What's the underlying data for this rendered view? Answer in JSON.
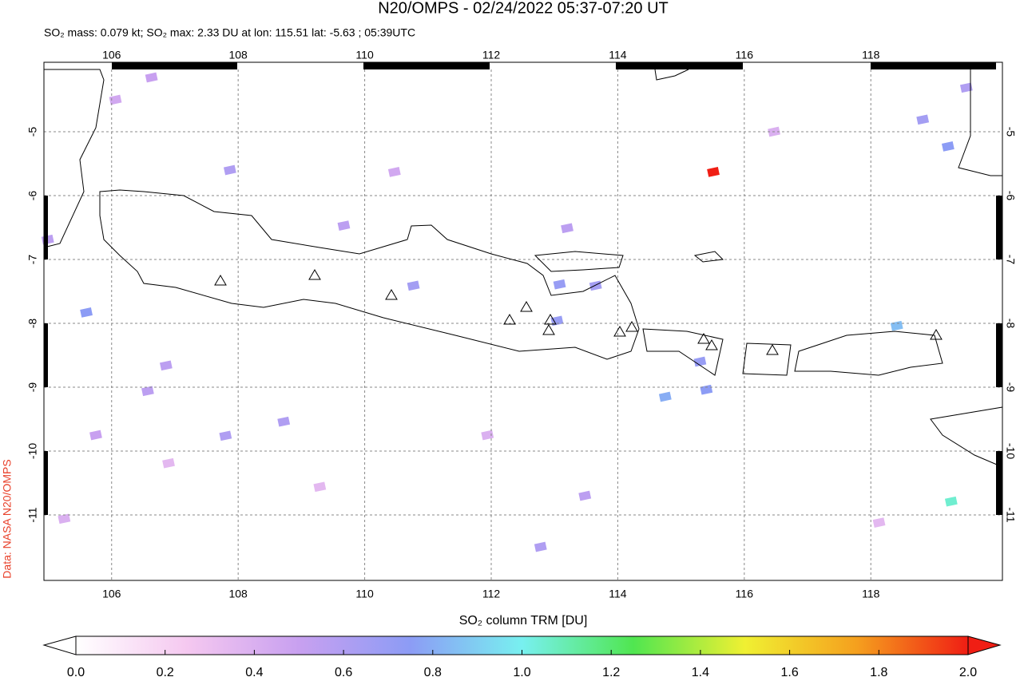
{
  "chart_data": {
    "type": "pixel-map",
    "title": "N20/OMPS - 02/24/2022 05:37-07:20 UT",
    "subtitle": "SO₂ mass: 0.079 kt; SO₂ max: 2.33 DU at lon: 115.51 lat: -5.63 ; 05:39UTC",
    "credit": "Data: NASA N20/OMPS",
    "xlim": [
      104.93,
      120.08
    ],
    "ylim": [
      -12.025,
      -4.025
    ],
    "xticks": [
      106,
      108,
      110,
      112,
      114,
      116,
      118
    ],
    "yticks": [
      -5,
      -6,
      -7,
      -8,
      -9,
      -10,
      -11
    ],
    "grid": true,
    "pixels": [
      {
        "lon": 115.51,
        "lat": -5.63,
        "value": 2.33
      },
      {
        "lon": 119.27,
        "lat": -10.79,
        "value": 1.05
      },
      {
        "lon": 114.75,
        "lat": -9.15,
        "value": 0.8
      },
      {
        "lon": 118.41,
        "lat": -8.04,
        "value": 0.85
      },
      {
        "lon": 107.87,
        "lat": -5.6,
        "value": 0.6
      },
      {
        "lon": 105.6,
        "lat": -7.83,
        "value": 0.75
      },
      {
        "lon": 113.04,
        "lat": -7.96,
        "value": 0.7
      },
      {
        "lon": 113.65,
        "lat": -7.41,
        "value": 0.65
      },
      {
        "lon": 110.77,
        "lat": -7.41,
        "value": 0.65
      },
      {
        "lon": 113.08,
        "lat": -7.39,
        "value": 0.7
      },
      {
        "lon": 108.72,
        "lat": -9.54,
        "value": 0.6
      },
      {
        "lon": 107.8,
        "lat": -9.76,
        "value": 0.6
      },
      {
        "lon": 106.86,
        "lat": -8.66,
        "value": 0.55
      },
      {
        "lon": 106.57,
        "lat": -9.06,
        "value": 0.55
      },
      {
        "lon": 105.75,
        "lat": -9.75,
        "value": 0.5
      },
      {
        "lon": 109.67,
        "lat": -6.47,
        "value": 0.55
      },
      {
        "lon": 118.82,
        "lat": -4.81,
        "value": 0.65
      },
      {
        "lon": 119.22,
        "lat": -5.23,
        "value": 0.75
      },
      {
        "lon": 119.51,
        "lat": -4.31,
        "value": 0.6
      },
      {
        "lon": 115.4,
        "lat": -9.04,
        "value": 0.75
      },
      {
        "lon": 112.78,
        "lat": -11.5,
        "value": 0.6
      },
      {
        "lon": 113.48,
        "lat": -10.7,
        "value": 0.55
      },
      {
        "lon": 106.06,
        "lat": -4.5,
        "value": 0.45
      },
      {
        "lon": 106.63,
        "lat": -4.15,
        "value": 0.5
      },
      {
        "lon": 105.25,
        "lat": -11.06,
        "value": 0.4
      },
      {
        "lon": 113.2,
        "lat": -6.51,
        "value": 0.55
      },
      {
        "lon": 104.99,
        "lat": -6.69,
        "value": 0.55
      },
      {
        "lon": 115.3,
        "lat": -8.6,
        "value": 0.7
      },
      {
        "lon": 116.47,
        "lat": -5.0,
        "value": 0.4
      },
      {
        "lon": 111.94,
        "lat": -9.75,
        "value": 0.4
      },
      {
        "lon": 109.29,
        "lat": -10.56,
        "value": 0.35
      },
      {
        "lon": 106.9,
        "lat": -10.19,
        "value": 0.35
      },
      {
        "lon": 118.13,
        "lat": -11.12,
        "value": 0.35
      },
      {
        "lon": 110.47,
        "lat": -5.63,
        "value": 0.45
      }
    ],
    "colorbar": {
      "label": "SO₂ column TRM [DU]",
      "lim": [
        0,
        2
      ],
      "ticks": [
        {
          "value": 0,
          "label": "0.0"
        },
        0.2,
        0.4,
        0.6,
        0.8,
        {
          "value": 1,
          "label": "1.0"
        },
        1.2,
        1.4,
        1.6,
        1.8,
        {
          "value": 2,
          "label": "2.0"
        }
      ],
      "colors": [
        "#ffffff",
        "#f5c8f0",
        "#c8a0f0",
        "#8c9cf5",
        "#78f0f0",
        "#50e650",
        "#f0f032",
        "#f5a01e",
        "#f01e14"
      ]
    }
  }
}
